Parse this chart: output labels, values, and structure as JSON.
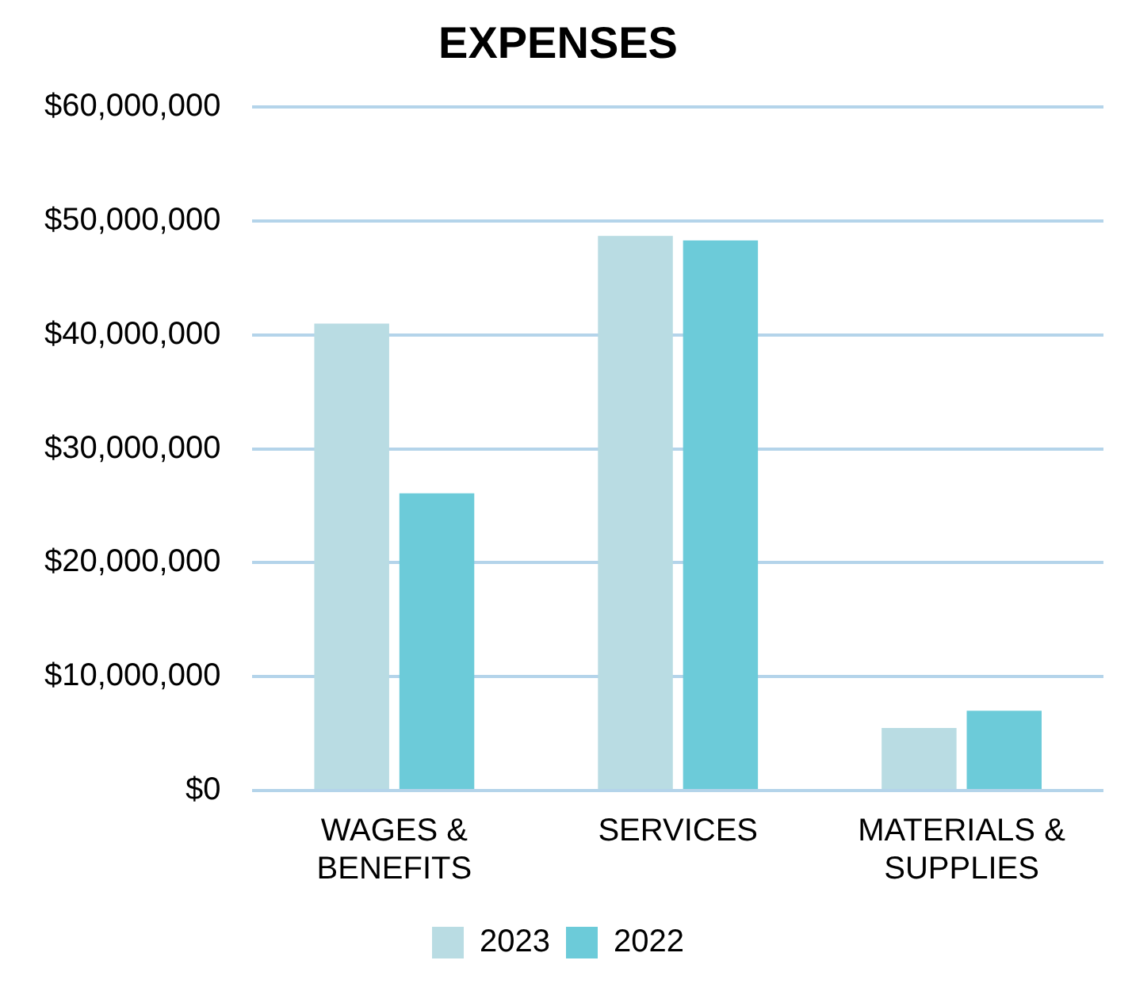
{
  "chart_data": {
    "type": "bar",
    "title": "EXPENSES",
    "categories": [
      "WAGES & BENEFITS",
      "SERVICES",
      "MATERIALS & SUPPLIES"
    ],
    "series": [
      {
        "name": "2023",
        "color": "#b9dce3",
        "values": [
          41000000,
          48700000,
          5500000
        ]
      },
      {
        "name": "2022",
        "color": "#6ccbd9",
        "values": [
          26100000,
          48300000,
          7000000
        ]
      }
    ],
    "ylim": [
      0,
      60000000
    ],
    "yticks": [
      {
        "value": 0,
        "label": "$0"
      },
      {
        "value": 10000000,
        "label": "$10,000,000"
      },
      {
        "value": 20000000,
        "label": "$20,000,000"
      },
      {
        "value": 30000000,
        "label": "$30,000,000"
      },
      {
        "value": 40000000,
        "label": "$40,000,000"
      },
      {
        "value": 50000000,
        "label": "$50,000,000"
      },
      {
        "value": 60000000,
        "label": "$60,000,000"
      }
    ],
    "grid": "y",
    "legend": "bottom"
  }
}
